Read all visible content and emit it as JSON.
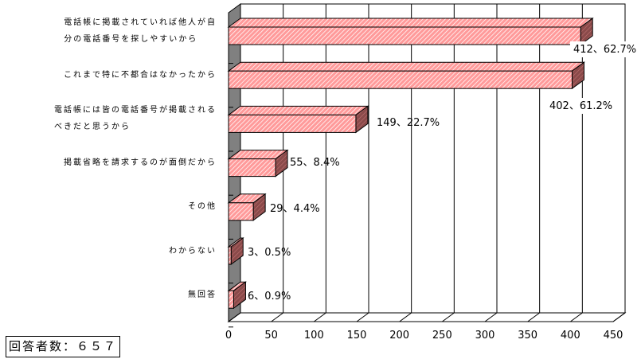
{
  "chart_data": {
    "type": "bar",
    "orientation": "horizontal",
    "style": "3d",
    "categories": [
      "電話帳に掲載されていれば他人が自分の電話番号を探しやすいから",
      "これまで特に不都合はなかったから",
      "電話帳には皆の電話番号が掲載されるべきだと思うから",
      "掲載省略を請求するのが面倒だから",
      "その他",
      "わからない",
      "無回答"
    ],
    "category_lines": [
      [
        "電話帳に掲載されていれば他人が自",
        "分の電話番号を探しやすいから"
      ],
      [
        "これまで特に不都合はなかったから"
      ],
      [
        "電話帳には皆の電話番号が掲載される",
        "べきだと思うから"
      ],
      [
        "掲載省略を請求するのが面倒だから"
      ],
      [
        "その他"
      ],
      [
        "わからない"
      ],
      [
        "無回答"
      ]
    ],
    "values": [
      412,
      402,
      149,
      55,
      29,
      3,
      6
    ],
    "percents": [
      62.7,
      61.2,
      22.7,
      8.4,
      4.4,
      0.5,
      0.9
    ],
    "data_labels": [
      "412、62.7%",
      "402、61.2%",
      "149、22.7%",
      "55、8.4%",
      "29、4.4%",
      "3、0.5%",
      "6、0.9%"
    ],
    "xlim": [
      0,
      450
    ],
    "xticks": [
      "0",
      "50",
      "100",
      "150",
      "200",
      "250",
      "300",
      "350",
      "400",
      "450"
    ],
    "grid": true,
    "bar_color": "#ff8080",
    "bar_side_color": "#804040",
    "wall_color": "#808080"
  },
  "note": "回答者数：６５７"
}
